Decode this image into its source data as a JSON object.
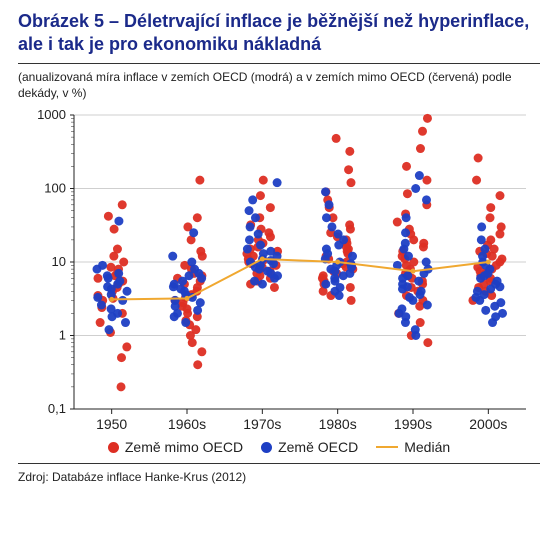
{
  "title": "Obrázek 5 – Déletrvající inflace je běžnější než hyperinflace, ale i tak je pro ekonomiku nákladná",
  "subtitle": "(anualizovaná míra inflace v zemích OECD (modrá) a v zemích mimo OECD (červená) podle dekády, v %)",
  "source": "Zdroj: Databáze inflace Hanke-Krus (2012)",
  "chart": {
    "type": "scatter-log",
    "background_color": "#ffffff",
    "grid_color": "#cfcfcf",
    "axis_color": "#222222",
    "font_family": "Arial",
    "tick_fontsize": 13,
    "marker_radius": 4.5,
    "marker_opacity": 0.95,
    "y_scale": "log",
    "ylim": [
      0.1,
      1000
    ],
    "y_ticks": [
      0.1,
      1,
      10,
      100,
      1000
    ],
    "y_tick_labels": [
      "0,1",
      "1",
      "10",
      "100",
      "1000"
    ],
    "x_categories": [
      "1950",
      "1960s",
      "1970s",
      "1980s",
      "1990s",
      "2000s"
    ],
    "jitter_width": 0.42,
    "series": [
      {
        "key": "nonOECD",
        "color": "#dd2e23",
        "values": {
          "1950": [
            0.2,
            0.5,
            0.7,
            1.1,
            1.5,
            2,
            2.4,
            3,
            3.2,
            3.5,
            4,
            4.5,
            5,
            5.5,
            6,
            6.5,
            7,
            8,
            8.5,
            10,
            12,
            15,
            28,
            42,
            60
          ],
          "1960s": [
            0.4,
            0.6,
            0.8,
            1,
            1.2,
            1.4,
            1.6,
            1.8,
            2,
            2.3,
            2.5,
            2.8,
            3,
            3.3,
            3.6,
            4,
            4.5,
            5,
            5.5,
            6,
            6.5,
            7,
            8,
            9,
            12,
            14,
            20,
            30,
            40,
            130
          ],
          "1970s": [
            4.5,
            5,
            5.5,
            6,
            6.5,
            7,
            7.5,
            8,
            8.5,
            9,
            9.5,
            10,
            10.5,
            11,
            12,
            13,
            14,
            15,
            16,
            18,
            20,
            22,
            25,
            28,
            32,
            40,
            55,
            80,
            130
          ],
          "1980s": [
            3,
            3.5,
            4,
            4.5,
            5,
            5.5,
            6,
            6.5,
            7,
            7.5,
            8,
            8.5,
            9,
            9.5,
            10,
            11,
            12,
            13,
            14,
            15,
            16,
            18,
            20,
            22,
            25,
            28,
            32,
            40,
            55,
            70,
            90,
            120,
            180,
            320,
            480
          ],
          "1990s": [
            0.8,
            1,
            1.5,
            2,
            2.5,
            3,
            3.5,
            4,
            4.5,
            5,
            5.5,
            6,
            6.5,
            7,
            7.5,
            8,
            9,
            10,
            11,
            12,
            14,
            16,
            18,
            20,
            24,
            28,
            35,
            45,
            60,
            85,
            130,
            200,
            350,
            600,
            900
          ],
          "2000s": [
            3,
            3.5,
            4,
            4.5,
            5,
            5.5,
            6,
            6.5,
            7,
            7.5,
            8,
            8.5,
            9,
            10,
            11,
            12,
            13,
            14,
            15,
            17,
            20,
            24,
            30,
            40,
            55,
            80,
            130,
            260
          ]
        }
      },
      {
        "key": "OECD",
        "color": "#1e3fc4",
        "values": {
          "1950": [
            1.2,
            1.5,
            1.8,
            2,
            2.3,
            2.6,
            3,
            3.3,
            3.6,
            4,
            4.3,
            4.6,
            5,
            5.5,
            6,
            6.5,
            7,
            8,
            9,
            36
          ],
          "1960s": [
            1.5,
            1.8,
            2,
            2.2,
            2.5,
            2.8,
            3,
            3.3,
            3.6,
            4,
            4.3,
            4.6,
            5,
            5.5,
            6,
            6.5,
            7,
            8,
            10,
            12,
            25
          ],
          "1970s": [
            5,
            5.5,
            6,
            6.5,
            7,
            7.5,
            8,
            8.5,
            9,
            9.5,
            10,
            10.5,
            11,
            12,
            13,
            14,
            15,
            17,
            20,
            24,
            30,
            40,
            50,
            70,
            120
          ],
          "1980s": [
            3.5,
            4,
            4.5,
            5,
            5.5,
            6,
            6.5,
            7,
            7.5,
            8,
            8.5,
            9,
            9.5,
            10,
            11,
            12,
            13,
            15,
            17,
            20,
            24,
            30,
            40,
            60,
            90
          ],
          "1990s": [
            1,
            1.2,
            1.5,
            1.8,
            2,
            2.3,
            2.6,
            3,
            3.3,
            3.6,
            4,
            4.3,
            4.6,
            5,
            5.5,
            6,
            6.5,
            7,
            8,
            9,
            10,
            12,
            15,
            18,
            25,
            40,
            70,
            100,
            150
          ],
          "2000s": [
            1.5,
            1.8,
            2,
            2.2,
            2.5,
            2.8,
            3,
            3.3,
            3.6,
            4,
            4.3,
            4.6,
            5,
            5.5,
            6,
            6.5,
            7,
            8,
            9,
            10,
            12,
            15,
            20,
            30
          ]
        }
      }
    ],
    "median_line": {
      "color": "#f0a830",
      "width": 2,
      "values": [
        3.1,
        3.2,
        11,
        10,
        7.5,
        10
      ]
    },
    "legend": {
      "items": [
        {
          "label": "Země mimo OECD",
          "color": "#dd2e23",
          "type": "dot"
        },
        {
          "label": "Země OECD",
          "color": "#1e3fc4",
          "type": "dot"
        },
        {
          "label": "Medián",
          "color": "#f0a830",
          "type": "line"
        }
      ]
    }
  }
}
